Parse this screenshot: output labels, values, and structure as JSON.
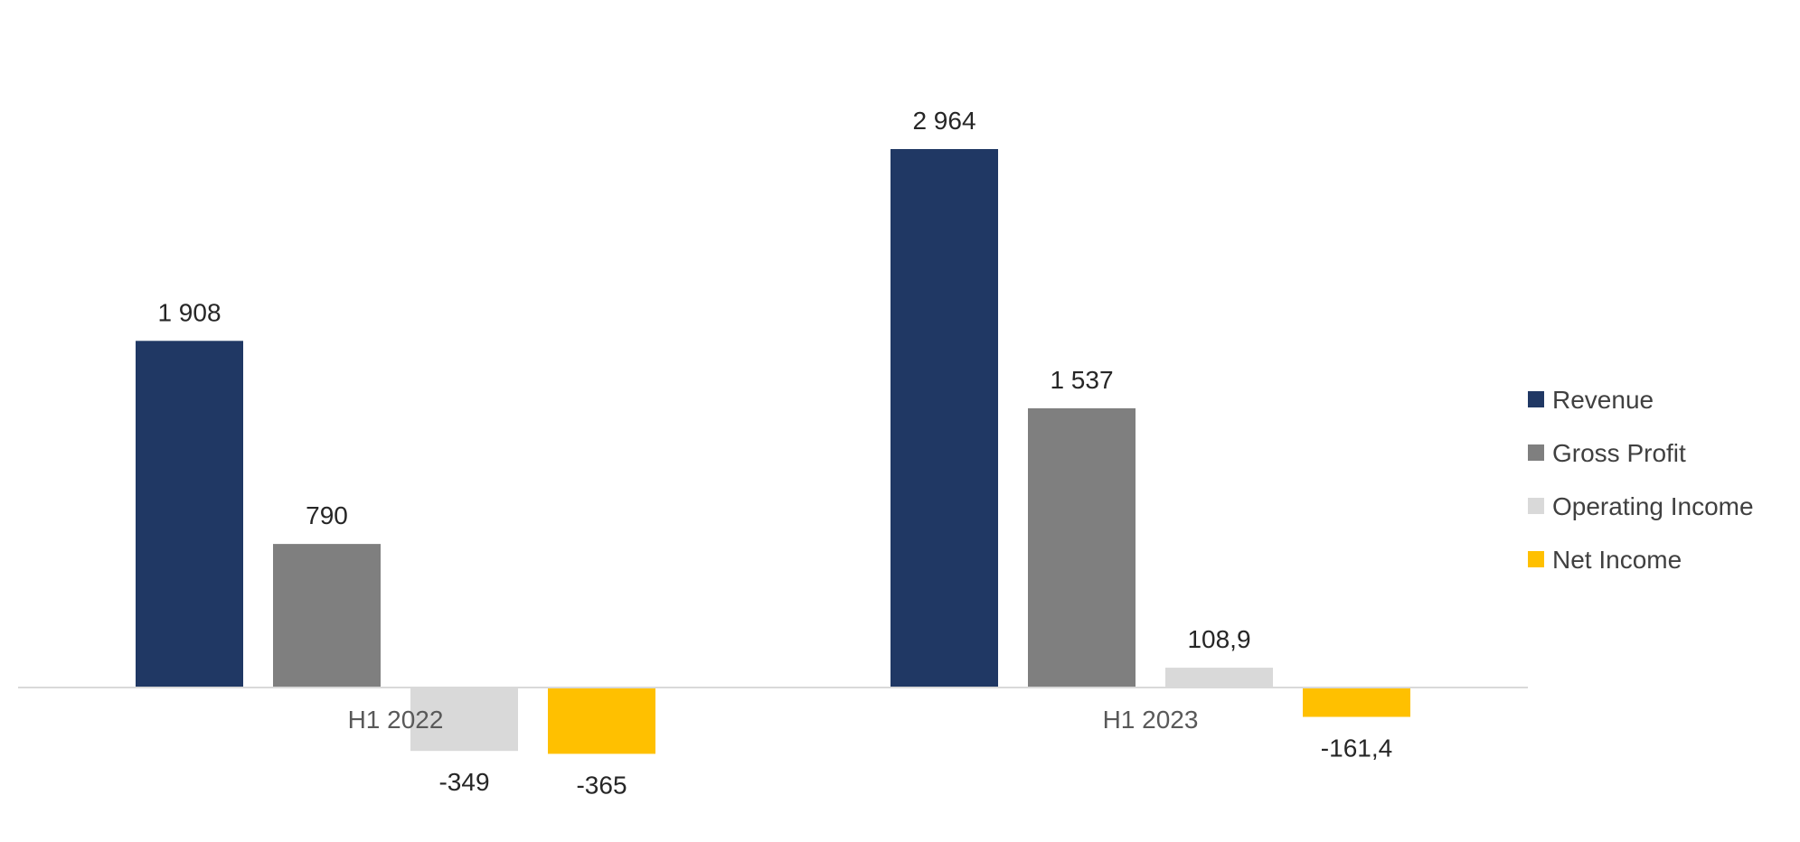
{
  "chart_data": {
    "type": "bar",
    "title": "",
    "xlabel": "",
    "ylabel": "",
    "categories": [
      "H1 2022",
      "H1 2023"
    ],
    "series": [
      {
        "name": "Revenue",
        "values": [
          1908,
          2964
        ],
        "labels": [
          "1 908",
          "2 964"
        ],
        "color": "#203864"
      },
      {
        "name": "Gross Profit",
        "values": [
          790,
          1537
        ],
        "labels": [
          "790",
          "1 537"
        ],
        "color": "#7f7f7f"
      },
      {
        "name": "Operating Income",
        "values": [
          -349,
          108.9
        ],
        "labels": [
          "-349",
          "108,9"
        ],
        "color": "#d9d9d9"
      },
      {
        "name": "Net Income",
        "values": [
          -365,
          -161.4
        ],
        "labels": [
          "-365",
          "-161,4"
        ],
        "color": "#ffc000"
      }
    ],
    "ylim": [
      -600,
      3600
    ],
    "grid": false,
    "y_axis_visible": false,
    "legend_position": "right"
  }
}
